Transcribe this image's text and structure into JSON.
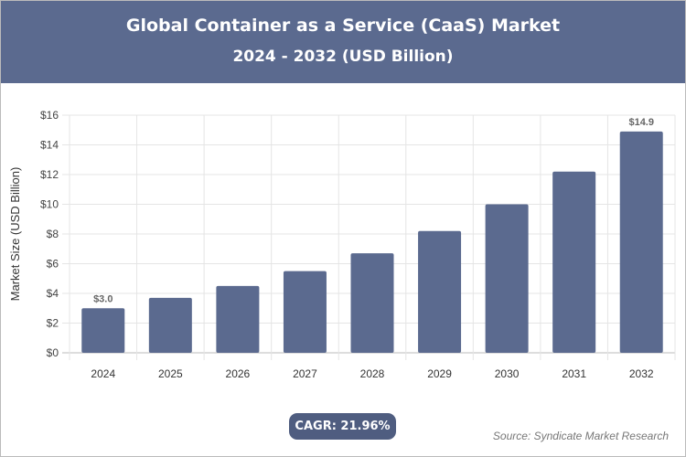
{
  "header": {
    "title": "Global Container as a Service (CaaS) Market",
    "subtitle": "2024 - 2032 (USD Billion)"
  },
  "cagr": "CAGR: 21.96%",
  "source": "Source: Syndicate Market Research",
  "colors": {
    "header": "#5b6a8f",
    "bar": "#5b6a8f",
    "pill": "#4f5d80"
  },
  "chart_data": {
    "type": "bar",
    "title": "Global Container as a Service (CaaS) Market",
    "subtitle": "2024 - 2032 (USD Billion)",
    "xlabel": "",
    "ylabel": "Market Size (USD Billion)",
    "categories": [
      "2024",
      "2025",
      "2026",
      "2027",
      "2028",
      "2029",
      "2030",
      "2031",
      "2032"
    ],
    "values": [
      3.0,
      3.7,
      4.5,
      5.5,
      6.7,
      8.2,
      10.0,
      12.2,
      14.9
    ],
    "data_labels": {
      "2024": "$3.0",
      "2032": "$14.9"
    },
    "ylim": [
      0,
      16
    ],
    "yticks": [
      "$0",
      "$2",
      "$4",
      "$6",
      "$8",
      "$10",
      "$12",
      "$14",
      "$16"
    ],
    "grid": true
  }
}
